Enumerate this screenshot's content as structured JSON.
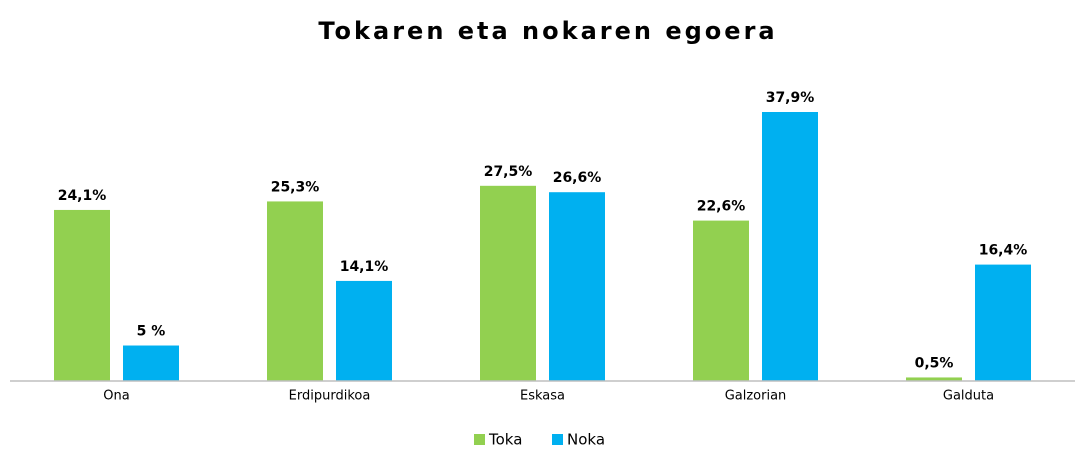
{
  "chart_data": {
    "type": "bar",
    "title": "Tokaren eta nokaren egoera",
    "categories": [
      "Ona",
      "Erdipurdikoa",
      "Eskasa",
      "Galzorian",
      "Galduta"
    ],
    "series": [
      {
        "name": "Toka",
        "color": "#92d050",
        "values": [
          24.1,
          25.3,
          27.5,
          22.6,
          0.5
        ],
        "value_labels": [
          "24,1%",
          "25,3%",
          "27,5%",
          "22,6%",
          "0,5%"
        ]
      },
      {
        "name": "Noka",
        "color": "#00b0f0",
        "values": [
          5,
          14.1,
          26.6,
          37.9,
          16.4
        ],
        "value_labels": [
          "5 %",
          "14,1%",
          "26,6%",
          "37,9%",
          "16,4%"
        ]
      }
    ],
    "legend": "bottom"
  }
}
